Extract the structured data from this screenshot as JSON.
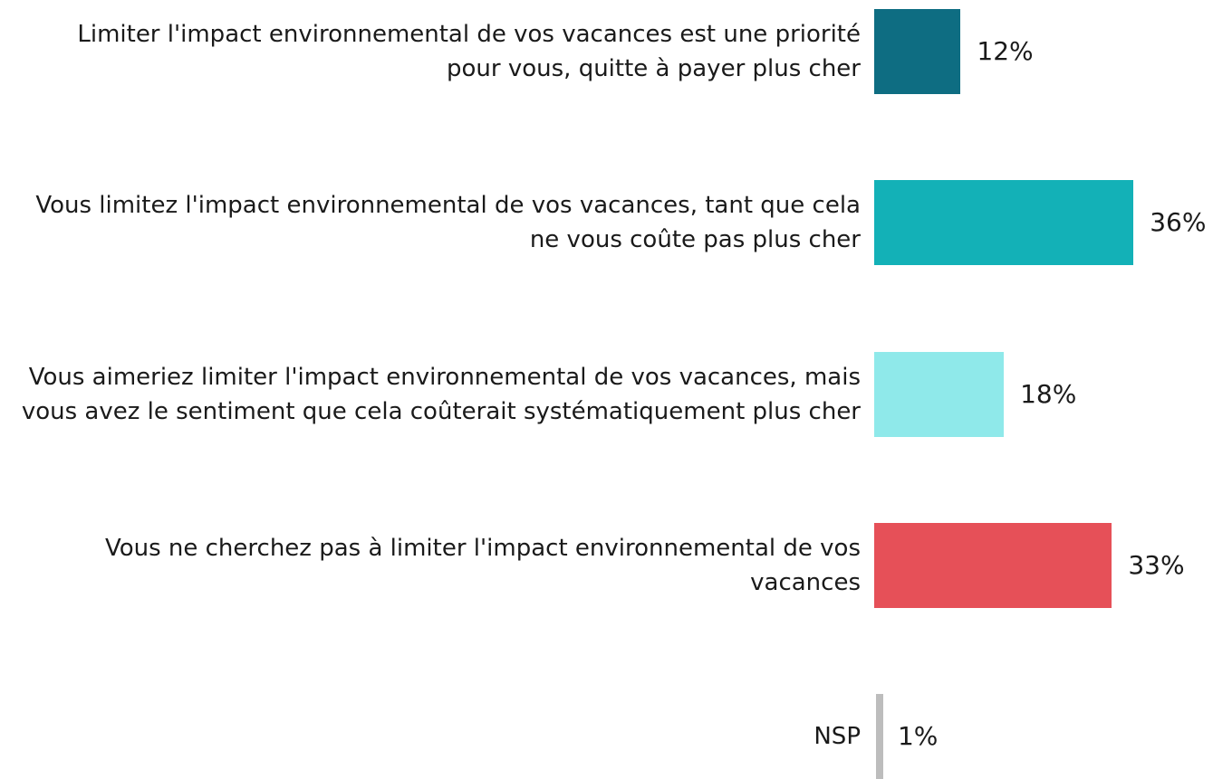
{
  "chart_data": {
    "type": "bar",
    "categories": [
      "Limiter l'impact environnemental de vos vacances est une priorité pour vous, quitte à payer plus cher",
      "Vous limitez l'impact environnemental de vos vacances, tant que cela ne vous coûte pas plus cher",
      "Vous aimeriez limiter l'impact environnemental de vos vacances, mais vous avez le sentiment que cela coûterait systématiquement plus cher",
      "Vous ne cherchez pas à limiter l'impact environnemental de vos vacances",
      "NSP"
    ],
    "values": [
      12,
      36,
      18,
      33,
      1
    ],
    "value_labels": [
      "12%",
      "36%",
      "18%",
      "33%",
      "1%"
    ],
    "colors": [
      "#0e6d82",
      "#13b1b7",
      "#8fe9ea",
      "#e65058",
      "#bdbdbd"
    ]
  }
}
